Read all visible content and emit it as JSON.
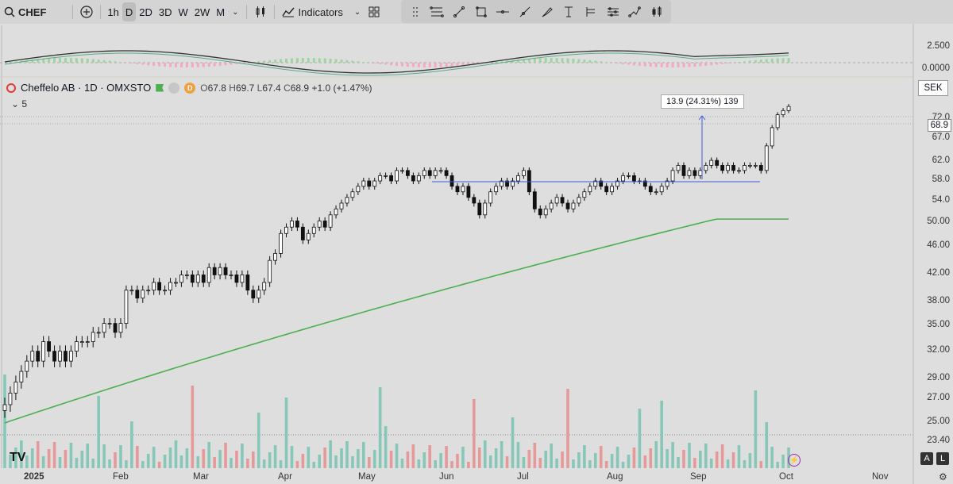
{
  "toolbar": {
    "symbol": "CHEF",
    "timeframes": [
      "1h",
      "D",
      "2D",
      "3D",
      "W",
      "2W",
      "M"
    ],
    "active_timeframe": "D",
    "indicators_label": "Indicators"
  },
  "legend": {
    "name": "Cheffelo AB · 1D · OMXSTO",
    "badge_d": "D",
    "open_label": "O",
    "open": "67.8",
    "high_label": "H",
    "high": "69.7",
    "low_label": "L",
    "low": "67.4",
    "close_label": "C",
    "close": "68.9",
    "change": "+1.0 (+1.47%)",
    "ma_length": "5"
  },
  "oscillator_axis": [
    "2.500",
    "0.0000"
  ],
  "price_axis": [
    "72.0",
    "67.0",
    "62.0",
    "58.0",
    "54.0",
    "50.00",
    "46.00",
    "42.00",
    "38.00",
    "35.00",
    "32.00",
    "29.00",
    "27.00",
    "25.00",
    "23.40"
  ],
  "current_price": "68.9",
  "currency": "SEK",
  "measure_label": "13.9 (24.31%) 139",
  "time_axis": [
    {
      "label": "2025",
      "bold": true
    },
    {
      "label": "Feb",
      "bold": false
    },
    {
      "label": "Mar",
      "bold": false
    },
    {
      "label": "Apr",
      "bold": false
    },
    {
      "label": "May",
      "bold": false
    },
    {
      "label": "Jun",
      "bold": false
    },
    {
      "label": "Jul",
      "bold": false
    },
    {
      "label": "Aug",
      "bold": false
    },
    {
      "label": "Sep",
      "bold": false
    },
    {
      "label": "Oct",
      "bold": false
    },
    {
      "label": "Nov",
      "bold": false
    }
  ],
  "buttons": {
    "auto": "A",
    "log": "L"
  },
  "logo": "TV",
  "colors": {
    "up": "#4caf50",
    "down": "#ef9a9a",
    "ma": "#4caf50",
    "line": "#3f5bdb"
  },
  "chart_data": {
    "type": "candlestick",
    "series_price": [
      {
        "m": "Jan",
        "c": [
          24,
          25,
          26,
          27,
          28,
          29,
          28,
          30,
          29,
          28,
          29,
          28,
          29,
          30,
          30
        ]
      },
      {
        "m": "Feb",
        "c": [
          30,
          31,
          31,
          32,
          32,
          31,
          32,
          36,
          36,
          35,
          36,
          36,
          37,
          36,
          36,
          37
        ]
      },
      {
        "m": "Mar",
        "c": [
          37,
          38,
          38,
          37,
          38,
          37,
          39,
          38,
          39,
          38,
          38,
          37,
          38,
          36,
          35,
          36
        ]
      },
      {
        "m": "Apr",
        "c": [
          37,
          40,
          41,
          44,
          45,
          46,
          45,
          43,
          44,
          45,
          46,
          45,
          47,
          48,
          49,
          50
        ]
      },
      {
        "m": "May",
        "c": [
          51,
          52,
          53,
          52,
          53,
          54,
          54,
          53,
          55,
          55,
          54,
          53,
          54,
          55,
          54,
          55
        ]
      },
      {
        "m": "Jun",
        "c": [
          55,
          54,
          52,
          51,
          52,
          50,
          49,
          47,
          49,
          51,
          52,
          53,
          52,
          53,
          54,
          55
        ]
      },
      {
        "m": "Jul",
        "c": [
          51,
          48,
          47,
          48,
          49,
          50,
          49,
          48,
          49,
          50,
          51,
          52,
          53,
          52,
          51,
          52
        ]
      },
      {
        "m": "Aug",
        "c": [
          53,
          54,
          54,
          53,
          53,
          52,
          51,
          51,
          52,
          53,
          55,
          56,
          54,
          55,
          54,
          55
        ]
      },
      {
        "m": "Sep",
        "c": [
          56,
          57,
          56,
          55,
          56,
          55,
          55,
          56,
          56,
          56,
          55,
          60,
          64,
          67,
          68,
          69
        ]
      }
    ],
    "ma_label": "5",
    "volume_peaks": [
      "Jan",
      "Feb",
      "May",
      "Jul",
      "Sep"
    ]
  }
}
